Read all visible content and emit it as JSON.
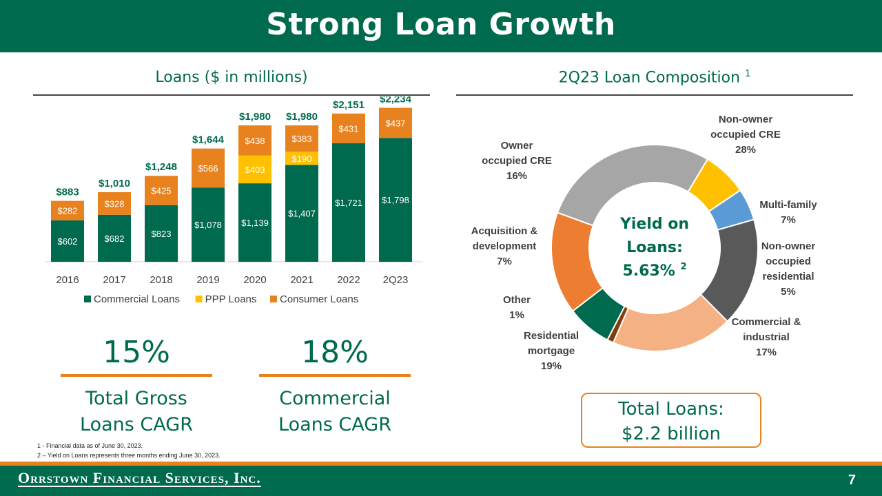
{
  "slide": {
    "title": "Strong Loan Growth",
    "page_number": "7",
    "footer_logo": "Orrstown Financial Services, Inc."
  },
  "left_section": {
    "title": "Loans ($ in millions)"
  },
  "right_section": {
    "title": "2Q23 Loan Composition",
    "title_sup": "1"
  },
  "chart_data": [
    {
      "type": "bar",
      "stacked": true,
      "categories": [
        "2016",
        "2017",
        "2018",
        "2019",
        "2020",
        "2021",
        "2022",
        "2Q23"
      ],
      "series": [
        {
          "name": "Commercial Loans",
          "color": "#006A4E",
          "values": [
            602,
            682,
            823,
            1078,
            1139,
            1407,
            1721,
            1798
          ],
          "labels": [
            "$602",
            "$682",
            "$823",
            "$1,078",
            "$1,139",
            "$1,407",
            "$1,721",
            "$1,798"
          ]
        },
        {
          "name": "PPP Loans",
          "color": "#FFC000",
          "values": [
            0,
            0,
            0,
            0,
            403,
            190,
            0,
            0
          ],
          "labels": [
            "",
            "",
            "",
            "",
            "$403",
            "$190",
            "",
            ""
          ]
        },
        {
          "name": "Consumer Loans",
          "color": "#E8821E",
          "values": [
            282,
            328,
            425,
            566,
            438,
            383,
            431,
            437
          ],
          "labels": [
            "$282",
            "$328",
            "$425",
            "$566",
            "$438",
            "$383",
            "$431",
            "$437"
          ]
        }
      ],
      "totals": [
        "$883",
        "$1,010",
        "$1,248",
        "$1,644",
        "$1,980",
        "$1,980",
        "$2,151",
        "$2,234"
      ],
      "ylim": [
        0,
        2400
      ],
      "legend": "bottom",
      "grid": false
    },
    {
      "type": "pie",
      "donut": true,
      "center_text": [
        "Yield on",
        "Loans:",
        "5.63%"
      ],
      "center_sup": "2",
      "slices": [
        {
          "name": [
            "Non-owner",
            "occupied CRE"
          ],
          "value": 28,
          "label": "28%",
          "color": "#A6A6A6"
        },
        {
          "name": [
            "Multi-family"
          ],
          "value": 7,
          "label": "7%",
          "color": "#FFC000"
        },
        {
          "name": [
            "Non-owner",
            "occupied",
            "residential"
          ],
          "value": 5,
          "label": "5%",
          "color": "#5B9BD5"
        },
        {
          "name": [
            "Commercial &",
            "industrial"
          ],
          "value": 17,
          "label": "17%",
          "color": "#595959"
        },
        {
          "name": [
            "Residential",
            "mortgage"
          ],
          "value": 19,
          "label": "19%",
          "color": "#F4B183"
        },
        {
          "name": [
            "Other"
          ],
          "value": 1,
          "label": "1%",
          "color": "#843C0C"
        },
        {
          "name": [
            "Acquisition &",
            "development"
          ],
          "value": 7,
          "label": "7%",
          "color": "#006A4E"
        },
        {
          "name": [
            "Owner",
            "occupied CRE"
          ],
          "value": 16,
          "label": "16%",
          "color": "#ED7D31"
        }
      ]
    }
  ],
  "stats": [
    {
      "value": "15%",
      "label": "Total Gross\nLoans CAGR"
    },
    {
      "value": "18%",
      "label": "Commercial\nLoans CAGR"
    }
  ],
  "total_loans": {
    "line1": "Total Loans:",
    "line2": "$2.2 billion"
  },
  "footnotes": [
    "1 -  Financial data as of June 30, 2023.",
    "2 – Yield on Loans represents three months ending June 30, 2023."
  ]
}
